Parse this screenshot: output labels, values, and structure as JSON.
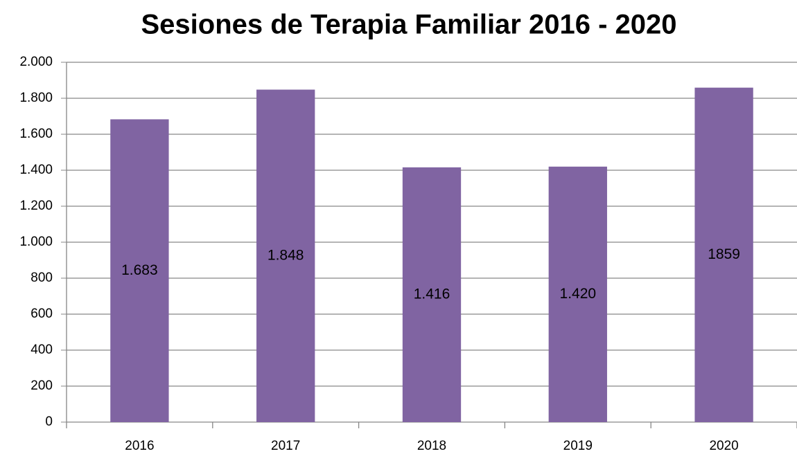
{
  "chart_data": {
    "type": "bar",
    "title": "Sesiones de Terapia Familiar 2016 - 2020",
    "categories": [
      "2016",
      "2017",
      "2018",
      "2019",
      "2020"
    ],
    "values": [
      1683,
      1848,
      1416,
      1420,
      1859
    ],
    "value_labels": [
      "1.683",
      "1.848",
      "1.416",
      "1.420",
      "1859"
    ],
    "color": "#8064a2",
    "ylim": [
      0,
      2000
    ],
    "yticks": [
      0,
      200,
      400,
      600,
      800,
      {
        "value": 1000,
        "label": "1.000"
      },
      {
        "value": 1200,
        "label": "1.200"
      },
      {
        "value": 1400,
        "label": "1.400"
      },
      {
        "value": 1600,
        "label": "1.600"
      },
      {
        "value": 1800,
        "label": "1.800"
      },
      {
        "value": 2000,
        "label": "2.000"
      }
    ],
    "grid": true
  }
}
